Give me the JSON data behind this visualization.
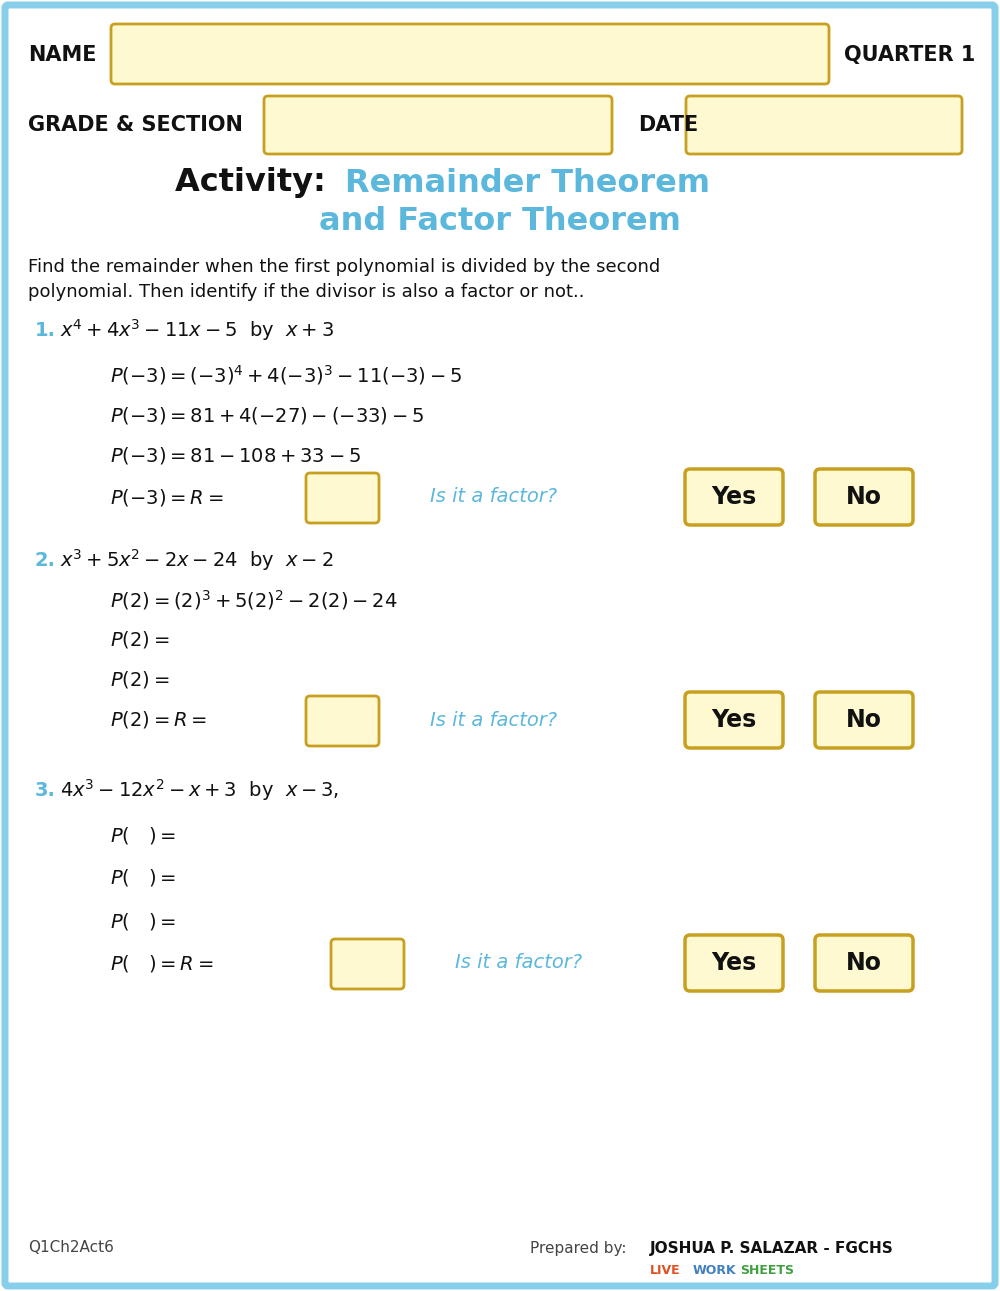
{
  "bg_color": "#ffffff",
  "border_color": "#87ceeb",
  "input_box_color": "#fef9d0",
  "input_box_border": "#c8a020",
  "header_label_color": "#000000",
  "name_label": "NAME",
  "quarter_label": "QUARTER 1",
  "grade_label": "GRADE & SECTION",
  "date_label": "DATE",
  "title_black": "Activity: ",
  "title_blue_line1": "Remainder Theorem",
  "title_blue_line2": "and Factor Theorem",
  "title_blue_color": "#5bb8dc",
  "number_color": "#5bb8dc",
  "math_color": "#111111",
  "yes_no_bg": "#fef9d0",
  "yes_no_border": "#c8a020",
  "yes_no_color": "#111111",
  "factor_question_color": "#5bb8dc",
  "footer_left": "Q1Ch2Act6",
  "footer_prep": "Prepared by: ",
  "footer_name": "JOSHUA P. SALAZAR - FGCHS",
  "lw_live": "LIVE",
  "lw_work": "WORK",
  "lw_sheets": "SHEETS",
  "lw_color_live": "#e05020",
  "lw_color_work": "#4080c0",
  "lw_color_sheets": "#40a040"
}
